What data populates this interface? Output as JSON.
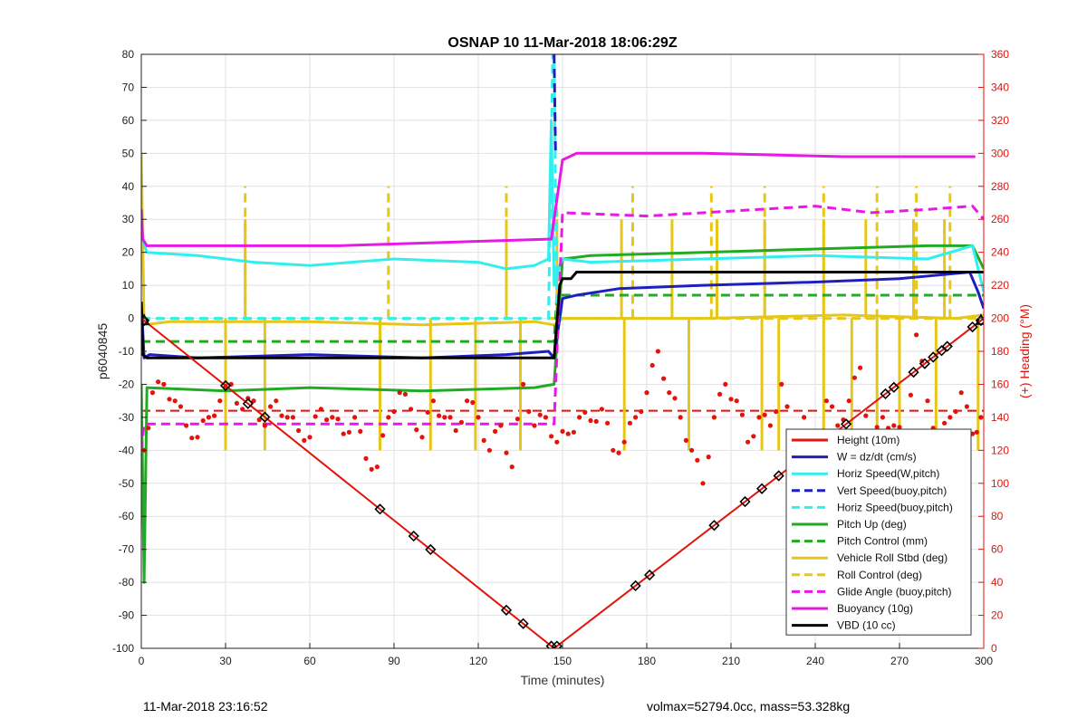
{
  "chart_data": {
    "type": "line",
    "title": "OSNAP 10 11-Mar-2018 18:06:29Z",
    "xlabel": "Time (minutes)",
    "ylabel": "p6040845",
    "ylabel_right": "(+) Heading (°M)",
    "xlim": [
      0,
      300
    ],
    "ylim": [
      -100,
      80
    ],
    "ylim_right": [
      0,
      360
    ],
    "xticks": [
      0,
      30,
      60,
      90,
      120,
      150,
      180,
      210,
      240,
      270,
      300
    ],
    "yticks": [
      -100,
      -90,
      -80,
      -70,
      -60,
      -50,
      -40,
      -30,
      -20,
      -10,
      0,
      10,
      20,
      30,
      40,
      50,
      60,
      70,
      80
    ],
    "yticks_right": [
      0,
      20,
      40,
      60,
      80,
      100,
      120,
      140,
      160,
      180,
      200,
      220,
      240,
      260,
      280,
      300,
      320,
      340,
      360
    ],
    "grid": true,
    "legend_position": "bottom-right",
    "colors": {
      "red": "#e3120b",
      "blue": "#1f1fbf",
      "cyan": "#33eeee",
      "green": "#22aa22",
      "yellow": "#e6c619",
      "magenta": "#e619e6",
      "black": "#000000"
    },
    "legend": [
      {
        "label": "Height (10m)",
        "color": "#e3120b",
        "style": "solid"
      },
      {
        "label": "W = dz/dt (cm/s)",
        "color": "#1f1fbf",
        "style": "solid"
      },
      {
        "label": "Horiz Speed(W,pitch)",
        "color": "#33eeee",
        "style": "solid"
      },
      {
        "label": "Vert Speed(buoy,pitch)",
        "color": "#1f1fbf",
        "style": "dashed"
      },
      {
        "label": "Horiz Speed(buoy,pitch)",
        "color": "#33eeee",
        "style": "dashed"
      },
      {
        "label": "Pitch Up (deg)",
        "color": "#22aa22",
        "style": "solid"
      },
      {
        "label": "Pitch Control (mm)",
        "color": "#22aa22",
        "style": "dashed"
      },
      {
        "label": "Vehicle Roll Stbd (deg)",
        "color": "#e6c619",
        "style": "solid"
      },
      {
        "label": "Roll Control (deg)",
        "color": "#e6c619",
        "style": "dashed"
      },
      {
        "label": "Glide Angle (buoy,pitch)",
        "color": "#e619e6",
        "style": "dashed"
      },
      {
        "label": "Buoyancy (10g)",
        "color": "#e619e6",
        "style": "solid"
      },
      {
        "label": "VBD (10 cc)",
        "color": "#000000",
        "style": "solid"
      }
    ],
    "series": [
      {
        "name": "Height (10m)",
        "color": "#e3120b",
        "style": "solid",
        "x": [
          0,
          147,
          300
        ],
        "y": [
          0,
          -100,
          0
        ]
      },
      {
        "name": "W = dz/dt (cm/s)",
        "color": "#1f1fbf",
        "style": "solid",
        "x": [
          0,
          1,
          3,
          20,
          60,
          100,
          130,
          145,
          147,
          150,
          155,
          170,
          200,
          240,
          270,
          295,
          298,
          300
        ],
        "y": [
          5,
          -12,
          -11,
          -12,
          -11,
          -12,
          -11,
          -10,
          -12,
          6,
          7,
          9,
          10,
          11,
          12,
          14,
          8,
          3
        ]
      },
      {
        "name": "Horiz Speed(W,pitch)",
        "color": "#33eeee",
        "style": "solid",
        "x": [
          0,
          2,
          20,
          40,
          60,
          90,
          120,
          130,
          140,
          145,
          146,
          147,
          149,
          150,
          160,
          200,
          240,
          280,
          296,
          300
        ],
        "y": [
          25,
          20,
          19,
          17,
          16,
          18,
          17,
          15,
          16,
          18,
          60,
          10,
          16,
          18,
          17,
          18,
          19,
          18,
          22,
          8
        ]
      },
      {
        "name": "Vert Speed(buoy,pitch)",
        "color": "#1f1fbf",
        "style": "dashed",
        "x": [
          147,
          147.5
        ],
        "y": [
          80,
          50
        ]
      },
      {
        "name": "Horiz Speed(buoy,pitch)",
        "color": "#33eeee",
        "style": "dashed",
        "x": [
          0,
          145,
          146.5,
          147,
          148,
          150
        ],
        "y": [
          0,
          0,
          80,
          80,
          0,
          0
        ]
      },
      {
        "name": "Pitch Up (deg)",
        "color": "#22aa22",
        "style": "solid",
        "x": [
          0,
          1,
          2,
          30,
          60,
          100,
          140,
          147,
          150,
          160,
          200,
          240,
          280,
          296,
          300
        ],
        "y": [
          -20,
          -80,
          -21,
          -22,
          -21,
          -22,
          -21,
          -20,
          18,
          19,
          20,
          21,
          22,
          22,
          15
        ]
      },
      {
        "name": "Pitch Control (mm)",
        "color": "#22aa22",
        "style": "dashed",
        "x": [
          0,
          147,
          148,
          300
        ],
        "y": [
          -7,
          -7,
          7,
          7
        ]
      },
      {
        "name": "Vehicle Roll Stbd (deg)",
        "color": "#e6c619",
        "style": "solid",
        "x": [
          0,
          1,
          10,
          60,
          100,
          140,
          147,
          150,
          200,
          250,
          290,
          300
        ],
        "y": [
          50,
          -2,
          -1,
          -1,
          -2,
          -1,
          -2,
          0,
          0,
          1,
          0,
          1
        ]
      },
      {
        "name": "Roll Control (deg)",
        "color": "#e6c619",
        "style": "dashed",
        "x": [
          0,
          300
        ],
        "y": [
          0,
          0
        ]
      },
      {
        "name": "Glide Angle (buoy,pitch)",
        "color": "#e619e6",
        "style": "dashed",
        "x": [
          0,
          1,
          147,
          150,
          180,
          220,
          240,
          260,
          280,
          296,
          300
        ],
        "y": [
          -40,
          -32,
          -32,
          32,
          31,
          33,
          34,
          32,
          33,
          34,
          30
        ]
      },
      {
        "name": "Buoyancy (10g)",
        "color": "#e619e6",
        "style": "solid",
        "x": [
          0,
          0.5,
          2,
          70,
          145,
          146,
          150,
          155,
          200,
          250,
          297
        ],
        "y": [
          33,
          24,
          22,
          22,
          24,
          24,
          48,
          50,
          50,
          49,
          49
        ]
      },
      {
        "name": "VBD (10 cc)",
        "color": "#000000",
        "style": "solid",
        "x": [
          0,
          0.5,
          2,
          145,
          147,
          149,
          150,
          153,
          155,
          300
        ],
        "y": [
          5,
          -11,
          -12,
          -12,
          -12,
          10,
          12,
          12,
          14,
          14
        ]
      }
    ],
    "roll_spikes": {
      "up_solid_x": [
        37,
        130,
        148,
        171,
        189,
        205,
        222,
        243,
        258,
        275,
        286
      ],
      "up_dashed_x": [
        37,
        88,
        130,
        148,
        175,
        203,
        222,
        243,
        262,
        276,
        288
      ],
      "down_x": [
        30,
        44,
        85,
        103,
        119,
        135,
        172,
        195,
        221,
        227,
        243,
        253,
        262,
        270,
        283,
        298
      ]
    },
    "heading": {
      "color": "#e3120b",
      "x": [
        1,
        4,
        8,
        12,
        16,
        20,
        24,
        28,
        32,
        36,
        40,
        44,
        48,
        52,
        56,
        60,
        64,
        68,
        72,
        76,
        80,
        84,
        88,
        92,
        96,
        100,
        104,
        108,
        112,
        116,
        120,
        124,
        128,
        132,
        136,
        140,
        144,
        148,
        152,
        156,
        160,
        164,
        168,
        172,
        176,
        180,
        184,
        188,
        192,
        196,
        200,
        204,
        208,
        212,
        216,
        220,
        224,
        228,
        232,
        236,
        240,
        244,
        248,
        252,
        256,
        260,
        264,
        268,
        272,
        276,
        280,
        284,
        288,
        292,
        296,
        299
      ],
      "y": [
        120,
        155,
        160,
        150,
        135,
        128,
        140,
        150,
        160,
        145,
        150,
        135,
        150,
        140,
        132,
        128,
        145,
        140,
        130,
        140,
        115,
        110,
        140,
        155,
        145,
        128,
        150,
        140,
        132,
        150,
        140,
        120,
        135,
        110,
        160,
        135,
        140,
        125,
        130,
        140,
        138,
        145,
        120,
        125,
        140,
        155,
        180,
        155,
        140,
        120,
        100,
        140,
        160,
        150,
        125,
        140,
        135,
        160,
        125,
        140,
        110,
        150,
        135,
        150,
        170,
        120,
        140,
        135,
        125,
        190,
        150,
        125,
        140,
        155,
        130,
        140
      ]
    },
    "heading_ref": 144,
    "markers": {
      "x": [
        1,
        30,
        38,
        44,
        85,
        97,
        103,
        130,
        136,
        146,
        148,
        176,
        181,
        204,
        215,
        221,
        227,
        236,
        244,
        251,
        265,
        268,
        275,
        279,
        282,
        285,
        287,
        296,
        299
      ],
      "triangle_x": [
        1,
        299
      ]
    }
  },
  "footer": {
    "left": "11-Mar-2018 23:16:52",
    "right": "volmax=52794.0cc, mass=53.328kg"
  }
}
